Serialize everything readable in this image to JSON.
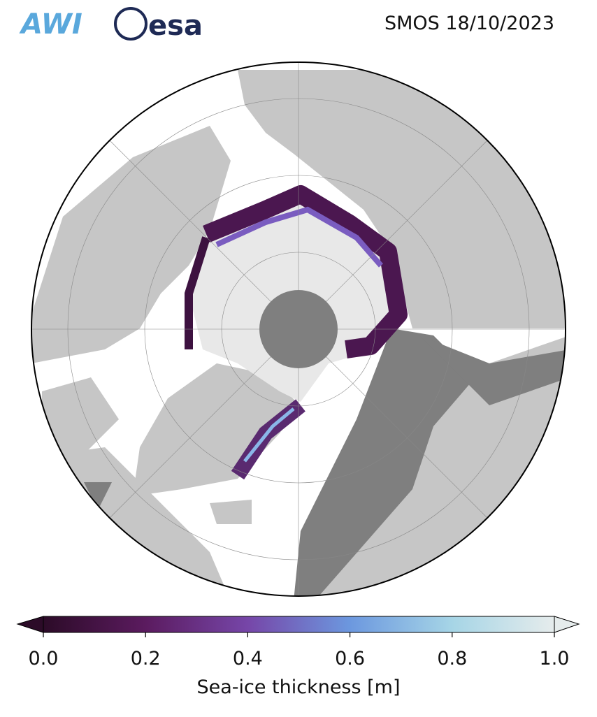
{
  "header": {
    "logos": [
      "AWI",
      "esa"
    ],
    "title": "SMOS 18/10/2023"
  },
  "colorbar": {
    "label": "Sea-ice thickness [m]",
    "lim": [
      0,
      1
    ],
    "ticks": [
      {
        "value": 0,
        "label": "0.0"
      },
      {
        "value": 0.2,
        "label": "0.2"
      },
      {
        "value": 0.4,
        "label": "0.4"
      },
      {
        "value": 0.6,
        "label": "0.6"
      },
      {
        "value": 0.8,
        "label": "0.8"
      },
      {
        "value": 1,
        "label": "1.0"
      }
    ],
    "colors": [
      "#2c0b28",
      "#5b1b5f",
      "#7646a8",
      "#6c98df",
      "#a6d5e6",
      "#e6ecec"
    ]
  }
}
